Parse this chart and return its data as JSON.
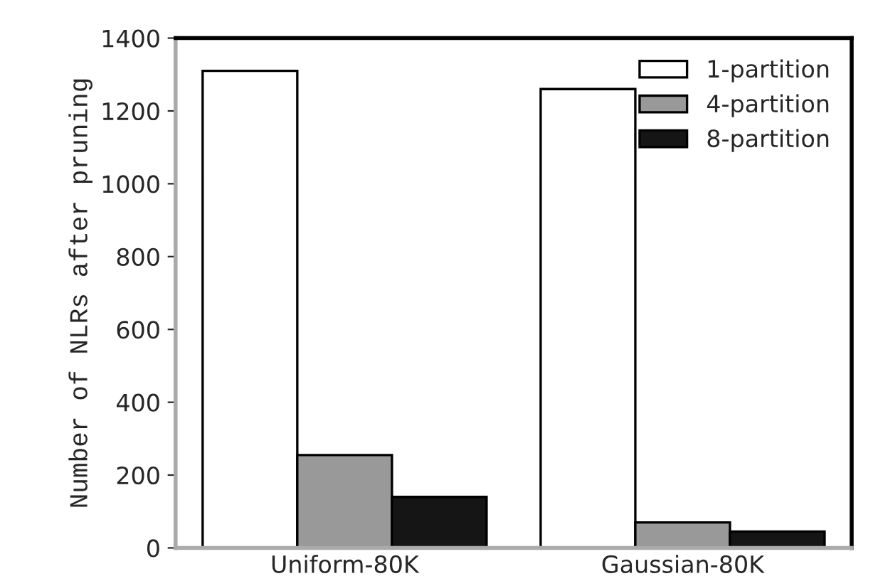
{
  "chart_data": {
    "type": "bar",
    "ylabel": "Number of NLRs after pruning",
    "categories": [
      "Uniform-80K",
      "Gaussian-80K"
    ],
    "series": [
      {
        "name": "1-partition",
        "color": "#ffffff",
        "values": [
          1310,
          1260
        ]
      },
      {
        "name": "4-partition",
        "color": "#999999",
        "values": [
          255,
          70
        ]
      },
      {
        "name": "8-partition",
        "color": "#151515",
        "values": [
          140,
          45
        ]
      }
    ],
    "ylim": [
      0,
      1400
    ],
    "yticks": [
      0,
      200,
      400,
      600,
      800,
      1000,
      1200,
      1400
    ],
    "grid": false,
    "legend": "top right"
  }
}
